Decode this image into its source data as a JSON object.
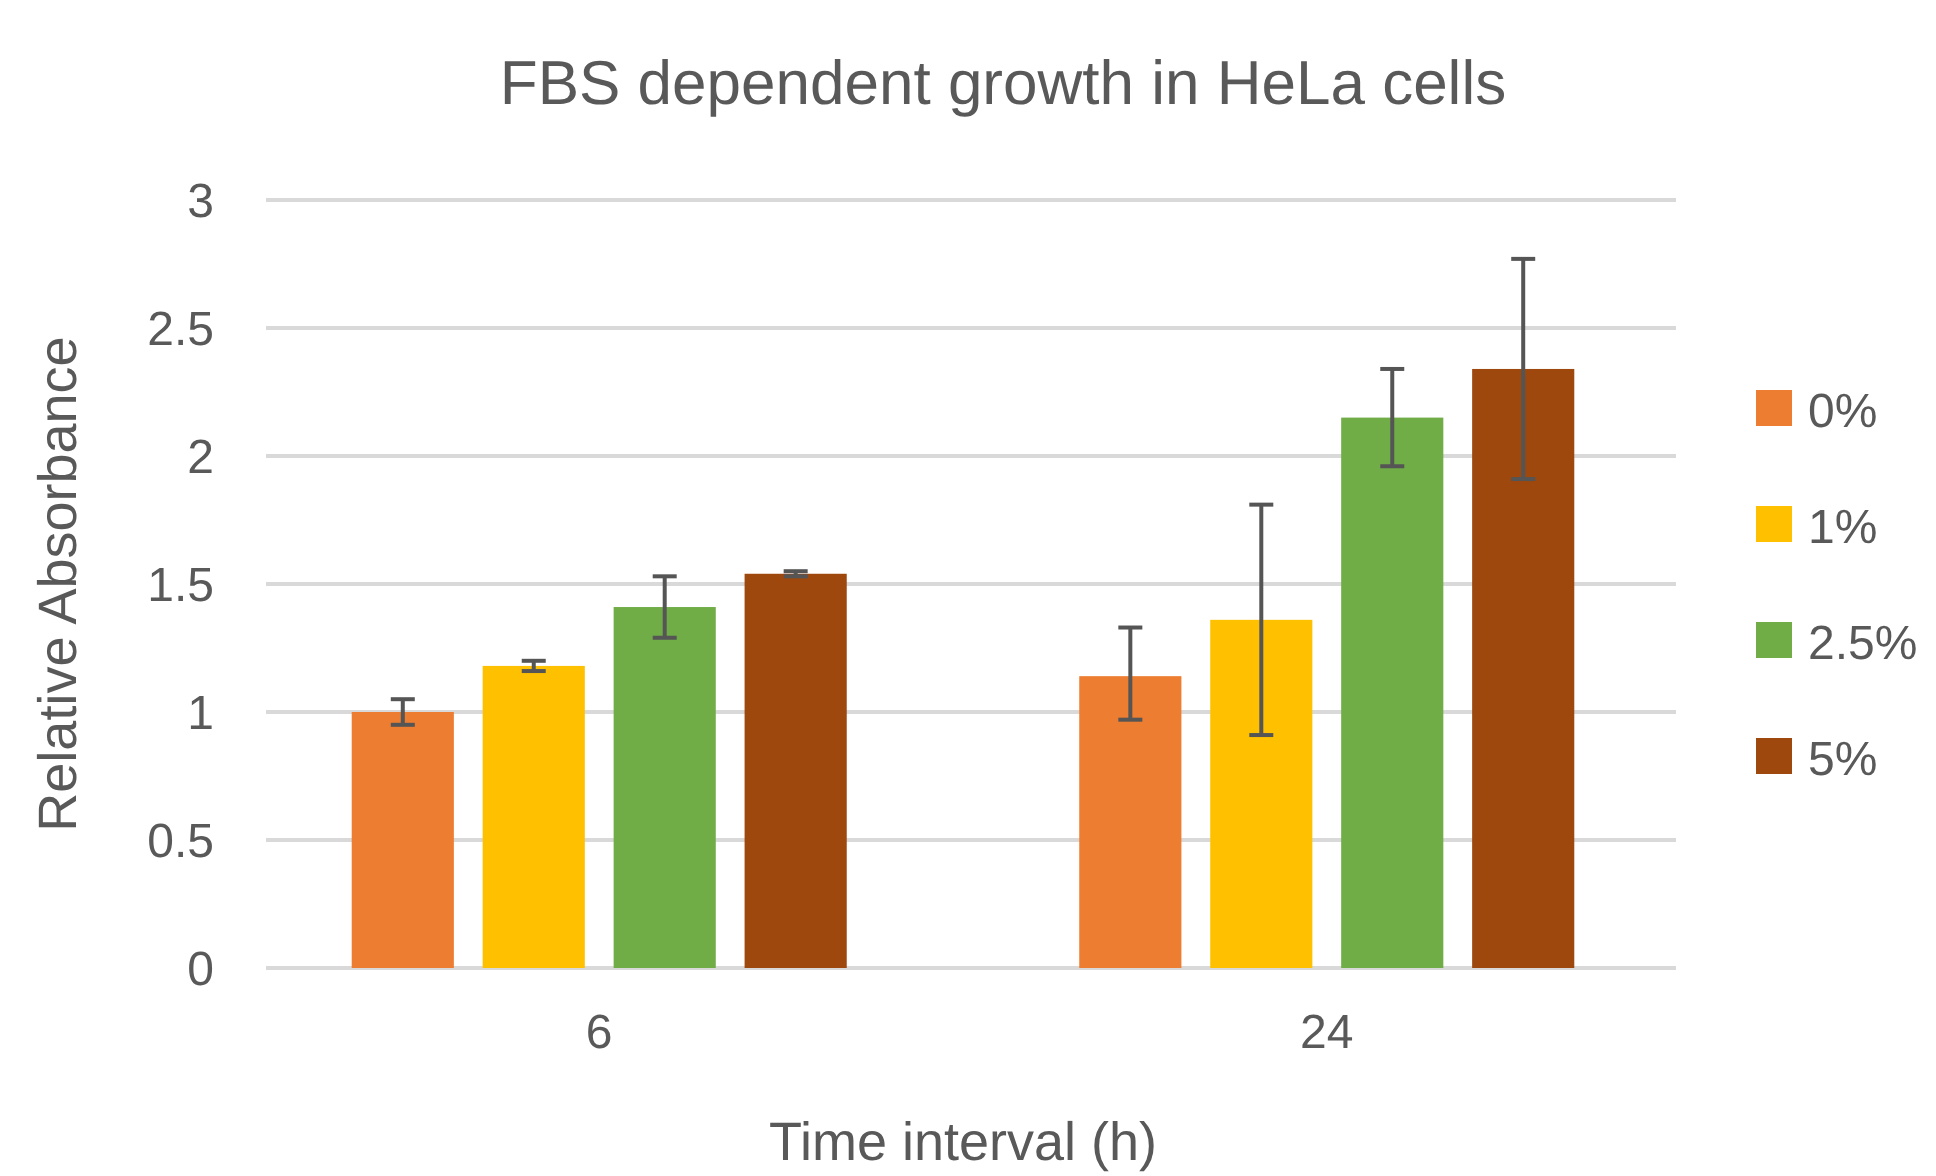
{
  "chart_data": {
    "type": "bar",
    "title": "FBS dependent  growth in HeLa cells",
    "xlabel": "Time interval (h)",
    "ylabel": "Relative Absorbance",
    "categories": [
      "6",
      "24"
    ],
    "series": [
      {
        "name": "0%",
        "color": "#ed7d31",
        "values": [
          1.0,
          1.14
        ],
        "errors": [
          0.05,
          [
            0.97,
            1.33
          ]
        ]
      },
      {
        "name": "1%",
        "color": "#ffc000",
        "values": [
          1.18,
          1.36
        ],
        "errors": [
          0.02,
          0.45
        ]
      },
      {
        "name": "2.5%",
        "color": "#70ad47",
        "values": [
          1.41,
          2.15
        ],
        "errors": [
          0.12,
          0.19
        ]
      },
      {
        "name": "5%",
        "color": "#9e480e",
        "values": [
          1.54,
          2.34
        ],
        "errors": [
          0.01,
          0.43
        ]
      }
    ],
    "ylim": [
      0,
      3
    ],
    "yticks": [
      0,
      0.5,
      1,
      1.5,
      2,
      2.5,
      3
    ],
    "grid": "y",
    "legend": "right"
  }
}
